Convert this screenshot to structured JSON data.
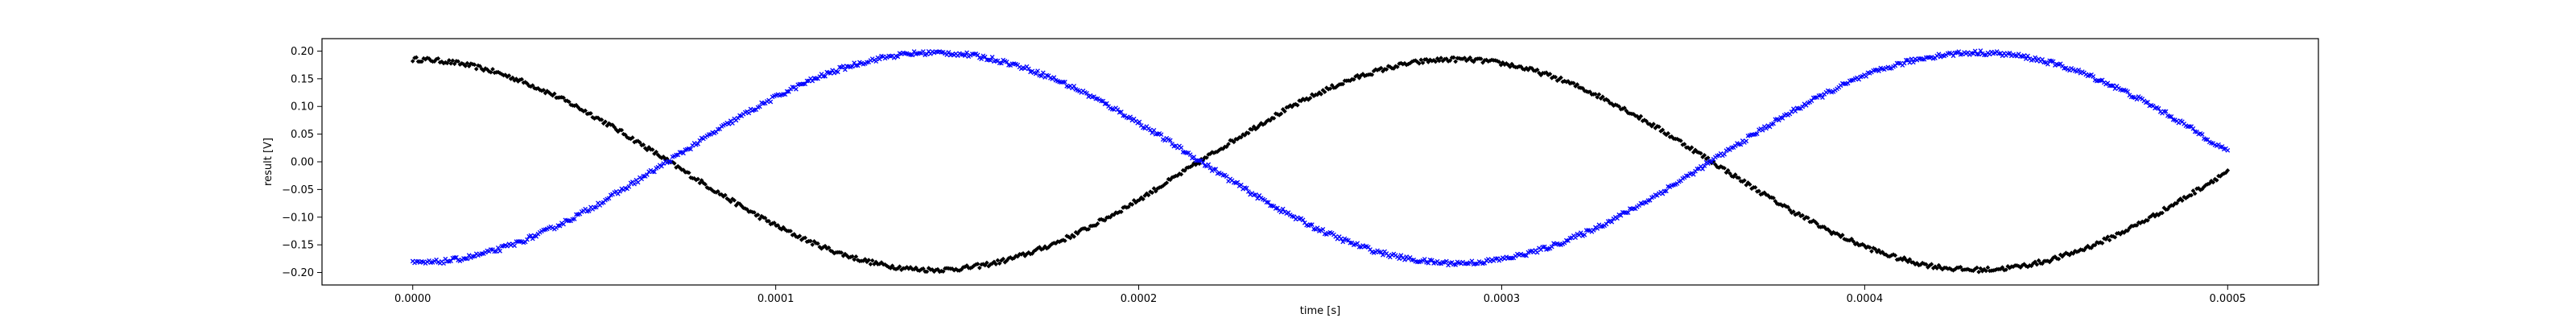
{
  "chart_data": {
    "type": "scatter",
    "title": "",
    "xlabel": "time [s]",
    "ylabel": "result [V]",
    "xlim": [
      -2.5e-05,
      0.000525
    ],
    "ylim": [
      -0.2225,
      0.2225
    ],
    "xticks": [
      0.0,
      0.0001,
      0.0002,
      0.0003,
      0.0004,
      0.0005
    ],
    "xtick_labels": [
      "0.0000",
      "0.0001",
      "0.0002",
      "0.0003",
      "0.0004",
      "0.0005"
    ],
    "yticks": [
      0.2,
      0.15,
      0.1,
      0.05,
      0.0,
      -0.05,
      -0.1,
      -0.15,
      -0.2
    ],
    "ytick_labels": [
      "0.20",
      "0.15",
      "0.10",
      "0.05",
      "0.00",
      "−0.05",
      "−0.10",
      "−0.15",
      "−0.20"
    ],
    "grid": false,
    "legend": "none",
    "x_range": [
      0.0,
      0.0005
    ],
    "num_points": 1000,
    "series": [
      {
        "color": "#000000",
        "marker": "diamond",
        "waveform": "cosine",
        "amplitude": 0.19,
        "offset": -0.005,
        "frequency_hz": 3480,
        "phase_rad": 0.0
      },
      {
        "color": "#0000ff",
        "marker": "x",
        "waveform": "negative cosine",
        "amplitude": 0.19,
        "offset": 0.007,
        "frequency_hz": 3480,
        "phase_rad": 0.0
      }
    ]
  }
}
